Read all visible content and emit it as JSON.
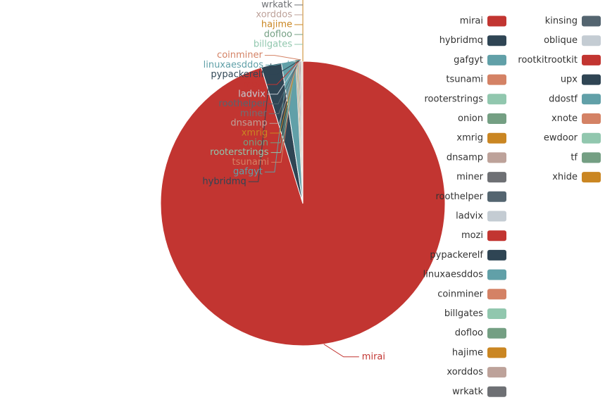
{
  "chart_data": {
    "type": "pie",
    "title": "",
    "legend_position": "right",
    "slices": [
      {
        "label": "mirai",
        "value": 95.2,
        "color": "#c23531"
      },
      {
        "label": "hybridmq",
        "value": 2.3,
        "color": "#2f4554"
      },
      {
        "label": "gafgyt",
        "value": 1.6,
        "color": "#61a0a8"
      },
      {
        "label": "tsunami",
        "value": 0.08,
        "color": "#d48265"
      },
      {
        "label": "rooterstrings",
        "value": 0.07,
        "color": "#91c7ae"
      },
      {
        "label": "onion",
        "value": 0.07,
        "color": "#749f83"
      },
      {
        "label": "xmrig",
        "value": 0.06,
        "color": "#ca8622"
      },
      {
        "label": "dnsamp",
        "value": 0.06,
        "color": "#bda29a"
      },
      {
        "label": "miner",
        "value": 0.05,
        "color": "#6e7074"
      },
      {
        "label": "roothelper",
        "value": 0.05,
        "color": "#546570"
      },
      {
        "label": "ladvix",
        "value": 0.04,
        "color": "#c4ccd3"
      },
      {
        "label": "mozi",
        "value": 0.04,
        "color": "#c23531"
      },
      {
        "label": "pypackerelf",
        "value": 0.04,
        "color": "#2f4554"
      },
      {
        "label": "linuxaesddos",
        "value": 0.03,
        "color": "#61a0a8"
      },
      {
        "label": "coinminer",
        "value": 0.03,
        "color": "#d48265"
      },
      {
        "label": "billgates",
        "value": 0.02,
        "color": "#91c7ae"
      },
      {
        "label": "dofloo",
        "value": 0.02,
        "color": "#749f83"
      },
      {
        "label": "hajime",
        "value": 0.02,
        "color": "#ca8622"
      },
      {
        "label": "xorddos",
        "value": 0.02,
        "color": "#bda29a"
      },
      {
        "label": "wrkatk",
        "value": 0.02,
        "color": "#6e7074"
      },
      {
        "label": "kinsing",
        "value": 0.01,
        "color": "#546570"
      },
      {
        "label": "oblique",
        "value": 0.01,
        "color": "#c4ccd3"
      },
      {
        "label": "rootkitrootkit",
        "value": 0.01,
        "color": "#c23531"
      },
      {
        "label": "upx",
        "value": 0.01,
        "color": "#2f4554"
      },
      {
        "label": "ddostf",
        "value": 0.01,
        "color": "#61a0a8"
      },
      {
        "label": "xnote",
        "value": 0.01,
        "color": "#d48265"
      },
      {
        "label": "ewdoor",
        "value": 0.01,
        "color": "#91c7ae"
      },
      {
        "label": "tf",
        "value": 0.01,
        "color": "#749f83"
      },
      {
        "label": "xhide",
        "value": 0.01,
        "color": "#ca8622"
      }
    ]
  }
}
